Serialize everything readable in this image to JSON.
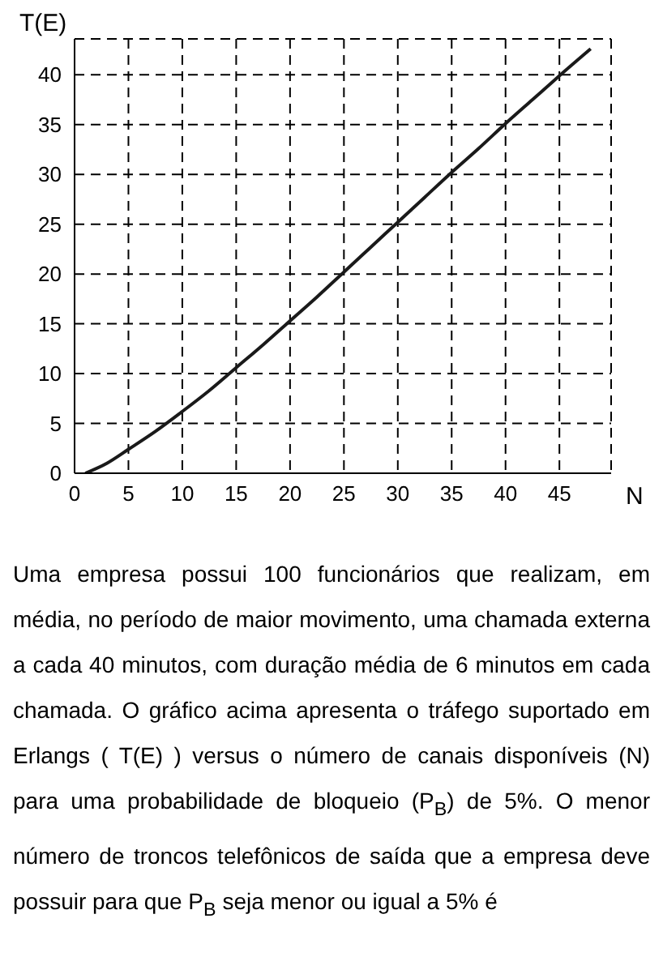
{
  "chart_data": {
    "type": "line",
    "xlabel": "N",
    "ylabel": "T(E)",
    "x": [
      1,
      3,
      5,
      7.5,
      10,
      12.5,
      15,
      17.5,
      20,
      22.5,
      25,
      27.5,
      30,
      32.5,
      35,
      37.5,
      40,
      42.5,
      45,
      47.9
    ],
    "series": [
      {
        "color": "#1a1a1a",
        "values": [
          0,
          1,
          2.4,
          4.2,
          6.2,
          8.3,
          10.6,
          12.9,
          15.3,
          17.7,
          20.2,
          22.7,
          25.2,
          27.7,
          30.2,
          32.6,
          35.1,
          37.5,
          39.9,
          42.6
        ]
      }
    ],
    "xlim": [
      0,
      49.8
    ],
    "xticks": [
      0,
      5,
      10,
      15,
      20,
      25,
      30,
      35,
      40,
      45
    ],
    "ylim": [
      0,
      43.6
    ],
    "yticks": [
      0,
      5,
      10,
      15,
      20,
      25,
      30,
      35,
      40
    ],
    "grid": true,
    "legend": false,
    "marker": "none",
    "line_style": "solid",
    "annotations": [
      "Uma empresa possui 100 funcionários que realizam, em média, no período de maior movimento, uma chamada externa a cada 40 minutos, com duração média de 6 minutos em cada chamada. O gráfico acima apresenta o tráfego suportado em Erlangs ( T(E) ) versus o número de canais disponíveis (N) para uma probabilidade de bloqueio (P$_{B}$) de 5%. O menor número de troncos telefônicos de saída que a empresa deve possuir para que P$_{B}$ seja menor ou igual a 5% é"
    ]
  }
}
